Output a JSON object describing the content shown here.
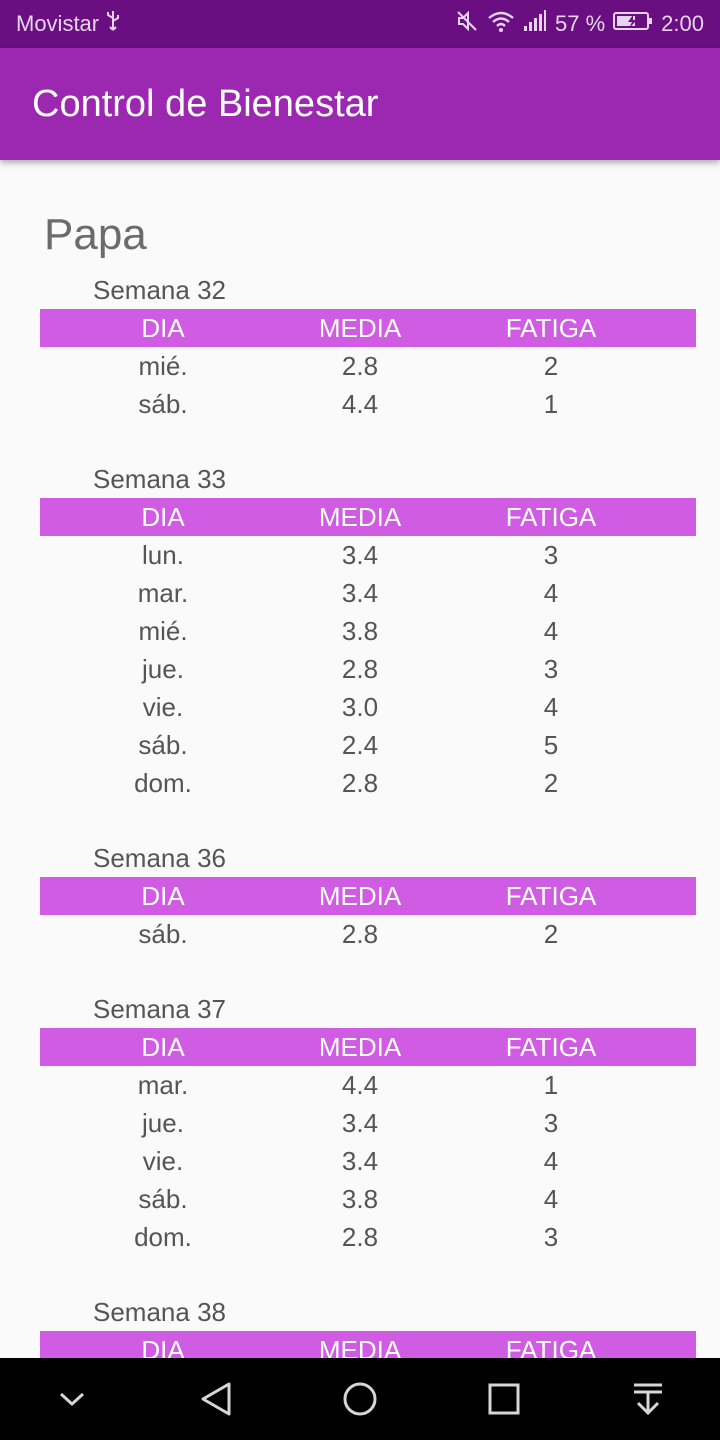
{
  "status_bar": {
    "carrier": "Movistar",
    "battery": "57 %",
    "time": "2:00"
  },
  "app_bar": {
    "title": "Control de Bienestar"
  },
  "person": "Papa",
  "table_headers": {
    "dia": "DIA",
    "media": "MEDIA",
    "fatiga": "FATIGA"
  },
  "weeks": [
    {
      "label": "Semana 32",
      "rows": [
        {
          "dia": "mié.",
          "media": "2.8",
          "fatiga": "2"
        },
        {
          "dia": "sáb.",
          "media": "4.4",
          "fatiga": "1"
        }
      ]
    },
    {
      "label": "Semana 33",
      "rows": [
        {
          "dia": "lun.",
          "media": "3.4",
          "fatiga": "3"
        },
        {
          "dia": "mar.",
          "media": "3.4",
          "fatiga": "4"
        },
        {
          "dia": "mié.",
          "media": "3.8",
          "fatiga": "4"
        },
        {
          "dia": "jue.",
          "media": "2.8",
          "fatiga": "3"
        },
        {
          "dia": "vie.",
          "media": "3.0",
          "fatiga": "4"
        },
        {
          "dia": "sáb.",
          "media": "2.4",
          "fatiga": "5"
        },
        {
          "dia": "dom.",
          "media": "2.8",
          "fatiga": "2"
        }
      ]
    },
    {
      "label": "Semana 36",
      "rows": [
        {
          "dia": "sáb.",
          "media": "2.8",
          "fatiga": "2"
        }
      ]
    },
    {
      "label": "Semana 37",
      "rows": [
        {
          "dia": "mar.",
          "media": "4.4",
          "fatiga": "1"
        },
        {
          "dia": "jue.",
          "media": "3.4",
          "fatiga": "3"
        },
        {
          "dia": "vie.",
          "media": "3.4",
          "fatiga": "4"
        },
        {
          "dia": "sáb.",
          "media": "3.8",
          "fatiga": "4"
        },
        {
          "dia": "dom.",
          "media": "2.8",
          "fatiga": "3"
        }
      ]
    },
    {
      "label": "Semana 38",
      "rows": []
    }
  ],
  "nav_bar": {
    "icons": [
      "chevron-down-icon",
      "back-icon",
      "home-icon",
      "recents-icon",
      "notifications-pull-icon"
    ]
  },
  "colors": {
    "status_bar": "#6a0f82",
    "app_bar": "#9c27b0",
    "table_header": "#d05ce3"
  }
}
